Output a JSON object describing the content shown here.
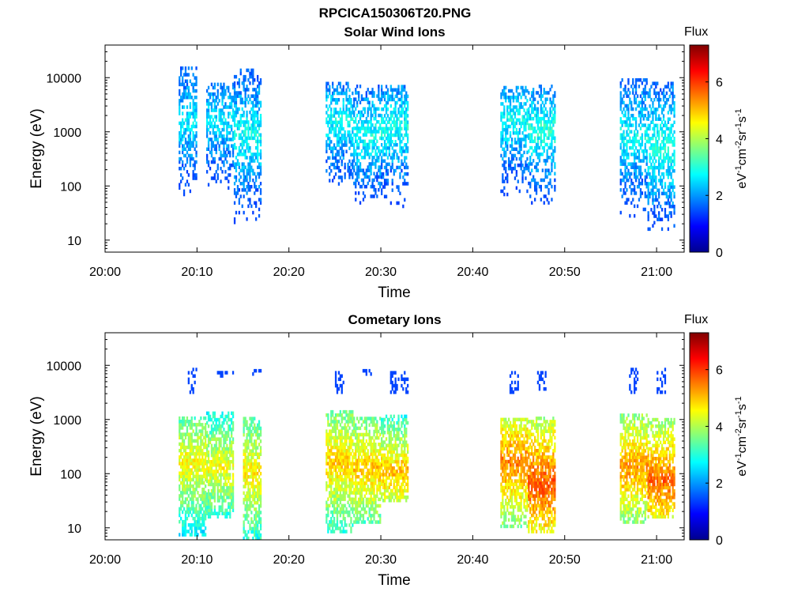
{
  "page_title": "RPCICA150306T20.PNG",
  "chart_data": [
    {
      "type": "heatmap",
      "title": "Solar Wind Ions",
      "xlabel": "Time",
      "ylabel": "Energy (eV)",
      "x_range": [
        "20:00",
        "21:03"
      ],
      "y_scale": "log",
      "y_range": [
        6,
        40000
      ],
      "x_ticks": [
        "20:00",
        "20:10",
        "20:20",
        "20:30",
        "20:40",
        "20:50",
        "21:00"
      ],
      "y_ticks": [
        "10",
        "100",
        "1000",
        "10000"
      ],
      "colorbar": {
        "label_top": "Flux",
        "label": "eV-1cm-2sr-1s-1",
        "range": [
          0,
          7.3
        ],
        "ticks": [
          "0",
          "2",
          "4",
          "6"
        ],
        "colormap": "jet"
      },
      "bursts": [
        {
          "start": "20:08",
          "end": "20:10",
          "e_min": 25,
          "e_max": 15000,
          "peak": 2.6,
          "peak_energy": 1500
        },
        {
          "start": "20:11",
          "end": "20:14",
          "e_min": 25,
          "e_max": 8000,
          "peak": 2.6,
          "peak_energy": 1500
        },
        {
          "start": "20:14",
          "end": "20:17",
          "e_min": 20,
          "e_max": 14000,
          "peak": 2.8,
          "peak_energy": 800
        },
        {
          "start": "20:24",
          "end": "20:27",
          "e_min": 45,
          "e_max": 8000,
          "peak": 2.8,
          "peak_energy": 1500
        },
        {
          "start": "20:27",
          "end": "20:30",
          "e_min": 40,
          "e_max": 7000,
          "peak": 2.9,
          "peak_energy": 800
        },
        {
          "start": "20:30",
          "end": "20:33",
          "e_min": 30,
          "e_max": 7000,
          "peak": 2.9,
          "peak_energy": 1200
        },
        {
          "start": "20:43",
          "end": "20:46",
          "e_min": 25,
          "e_max": 7000,
          "peak": 2.8,
          "peak_energy": 1500
        },
        {
          "start": "20:46",
          "end": "20:49",
          "e_min": 40,
          "e_max": 7000,
          "peak": 3.0,
          "peak_energy": 1000
        },
        {
          "start": "20:56",
          "end": "20:59",
          "e_min": 20,
          "e_max": 9000,
          "peak": 2.8,
          "peak_energy": 800
        },
        {
          "start": "20:59",
          "end": "21:02",
          "e_min": 15,
          "e_max": 8000,
          "peak": 3.0,
          "peak_energy": 500
        }
      ]
    },
    {
      "type": "heatmap",
      "title": "Cometary Ions",
      "xlabel": "Time",
      "ylabel": "Energy (eV)",
      "x_range": [
        "20:00",
        "21:03"
      ],
      "y_scale": "log",
      "y_range": [
        6,
        40000
      ],
      "x_ticks": [
        "20:00",
        "20:10",
        "20:20",
        "20:30",
        "20:40",
        "20:50",
        "21:00"
      ],
      "y_ticks": [
        "10",
        "100",
        "1000",
        "10000"
      ],
      "colorbar": {
        "label_top": "Flux",
        "label": "eV-1cm-2sr-1s-1",
        "range": [
          0,
          7.3
        ],
        "ticks": [
          "0",
          "2",
          "4",
          "6"
        ],
        "colormap": "jet"
      },
      "bursts": [
        {
          "start": "20:08",
          "end": "20:11",
          "e_min": 7,
          "e_max": 1000,
          "peak": 4.6,
          "peak_energy": 150
        },
        {
          "start": "20:11",
          "end": "20:14",
          "e_min": 15,
          "e_max": 1300,
          "peak": 4.5,
          "peak_energy": 120
        },
        {
          "start": "20:15",
          "end": "20:17",
          "e_min": 6,
          "e_max": 1100,
          "peak": 4.7,
          "peak_energy": 100
        },
        {
          "start": "20:24",
          "end": "20:27",
          "e_min": 8,
          "e_max": 1300,
          "peak": 4.9,
          "peak_energy": 150
        },
        {
          "start": "20:27",
          "end": "20:30",
          "e_min": 12,
          "e_max": 1100,
          "peak": 5.0,
          "peak_energy": 120
        },
        {
          "start": "20:30",
          "end": "20:33",
          "e_min": 30,
          "e_max": 1100,
          "peak": 5.1,
          "peak_energy": 100
        },
        {
          "start": "20:43",
          "end": "20:46",
          "e_min": 10,
          "e_max": 1000,
          "peak": 5.5,
          "peak_energy": 150
        },
        {
          "start": "20:46",
          "end": "20:49",
          "e_min": 8,
          "e_max": 1100,
          "peak": 5.8,
          "peak_energy": 60
        },
        {
          "start": "20:56",
          "end": "20:59",
          "e_min": 12,
          "e_max": 1200,
          "peak": 5.3,
          "peak_energy": 120
        },
        {
          "start": "20:59",
          "end": "21:02",
          "e_min": 15,
          "e_max": 1000,
          "peak": 5.7,
          "peak_energy": 70
        }
      ],
      "high_energy_spots": [
        {
          "start": "20:09",
          "end": "20:10",
          "e_min": 3000,
          "e_max": 9000
        },
        {
          "start": "20:12",
          "end": "20:14",
          "e_min": 6000,
          "e_max": 7500
        },
        {
          "start": "20:16",
          "end": "20:17",
          "e_min": 6500,
          "e_max": 7500
        },
        {
          "start": "20:25",
          "end": "20:26",
          "e_min": 3000,
          "e_max": 7500
        },
        {
          "start": "20:28",
          "end": "20:29",
          "e_min": 6500,
          "e_max": 7500
        },
        {
          "start": "20:31",
          "end": "20:33",
          "e_min": 3000,
          "e_max": 7500
        },
        {
          "start": "20:44",
          "end": "20:45",
          "e_min": 3000,
          "e_max": 7500
        },
        {
          "start": "20:47",
          "end": "20:48",
          "e_min": 3000,
          "e_max": 7500
        },
        {
          "start": "20:57",
          "end": "20:58",
          "e_min": 3000,
          "e_max": 8000
        },
        {
          "start": "21:00",
          "end": "21:01",
          "e_min": 3000,
          "e_max": 8000
        }
      ]
    }
  ]
}
